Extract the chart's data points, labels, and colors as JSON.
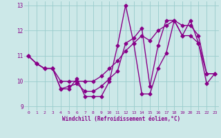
{
  "xlabel": "Windchill (Refroidissement éolien,°C)",
  "bg_color": "#cce8e8",
  "line_color": "#880088",
  "grid_color": "#99cccc",
  "xlim_min": -0.5,
  "xlim_max": 23.5,
  "ylim_min": 8.85,
  "ylim_max": 13.15,
  "yticks": [
    9,
    10,
    11,
    12,
    13
  ],
  "xticks": [
    0,
    1,
    2,
    3,
    4,
    5,
    6,
    7,
    8,
    9,
    10,
    11,
    12,
    13,
    14,
    15,
    16,
    17,
    18,
    19,
    20,
    21,
    22,
    23
  ],
  "s1_x": [
    0,
    1,
    2,
    3,
    4,
    5,
    6,
    7,
    8,
    9,
    10,
    11,
    12,
    13,
    14,
    15,
    16,
    17,
    18,
    19,
    20,
    21,
    22,
    23
  ],
  "s1_y": [
    11.0,
    10.7,
    10.5,
    10.5,
    9.7,
    9.7,
    10.1,
    9.4,
    9.4,
    9.4,
    10.0,
    11.4,
    13.0,
    11.5,
    9.5,
    9.5,
    10.5,
    11.1,
    12.4,
    11.8,
    12.4,
    11.5,
    9.9,
    10.3
  ],
  "s2_x": [
    0,
    1,
    2,
    3,
    4,
    5,
    6,
    7,
    8,
    9,
    10,
    11,
    12,
    13,
    14,
    15,
    16,
    17,
    18,
    19,
    20,
    21,
    22,
    23
  ],
  "s2_y": [
    11.0,
    10.7,
    10.5,
    10.5,
    10.0,
    10.0,
    10.0,
    10.0,
    10.0,
    10.2,
    10.5,
    10.8,
    11.2,
    11.5,
    11.8,
    11.6,
    12.0,
    12.2,
    12.4,
    11.8,
    11.8,
    11.5,
    10.3,
    10.3
  ],
  "s3_x": [
    0,
    1,
    2,
    3,
    4,
    5,
    6,
    7,
    8,
    9,
    10,
    11,
    12,
    13,
    14,
    15,
    16,
    17,
    18,
    19,
    20,
    21,
    22,
    23
  ],
  "s3_y": [
    11.0,
    10.7,
    10.5,
    10.5,
    9.7,
    9.8,
    9.9,
    9.6,
    9.6,
    9.8,
    10.1,
    10.4,
    11.5,
    11.7,
    12.1,
    9.8,
    11.4,
    12.4,
    12.4,
    12.2,
    12.2,
    11.8,
    10.3,
    10.3
  ],
  "marker": "D",
  "markersize": 2.5,
  "linewidth": 1.0
}
